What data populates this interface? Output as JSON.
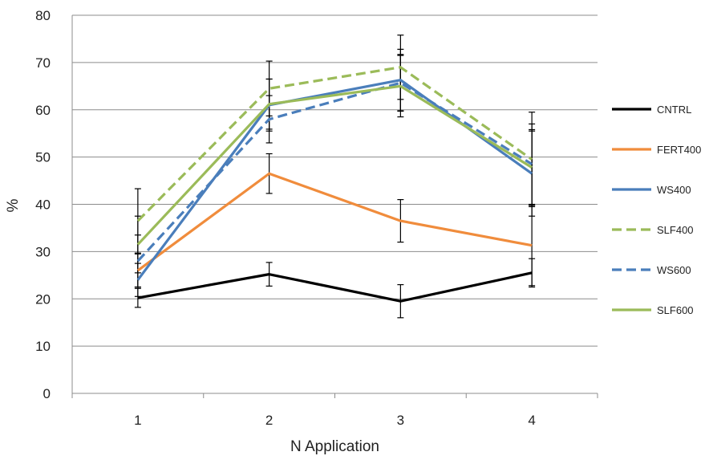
{
  "chart_data": {
    "type": "line",
    "title": "",
    "xlabel": "N Application",
    "ylabel": "%",
    "x": [
      "1",
      "2",
      "3",
      "4"
    ],
    "ylim": [
      0,
      80
    ],
    "yticks": [
      "0",
      "10",
      "20",
      "30",
      "40",
      "50",
      "60",
      "70",
      "80"
    ],
    "grid": "horizontal",
    "legend_position": "right",
    "series": [
      {
        "name": "CNTRL",
        "color": "#000000",
        "dash": false,
        "values": [
          20.2,
          25.2,
          19.5,
          25.5
        ],
        "errors": [
          2.0,
          2.5,
          3.5,
          3.0
        ]
      },
      {
        "name": "FERT400",
        "color": "#f08c3c",
        "dash": false,
        "values": [
          26.0,
          46.5,
          36.5,
          31.3
        ],
        "errors": [
          3.5,
          4.2,
          4.5,
          8.5
        ]
      },
      {
        "name": "WS400",
        "color": "#4a7ebb",
        "dash": false,
        "values": [
          24.0,
          61.0,
          66.3,
          46.5
        ],
        "errors": [
          3.5,
          5.5,
          6.5,
          9.0
        ]
      },
      {
        "name": "SLF400",
        "color": "#9bbb59",
        "dash": true,
        "values": [
          36.5,
          64.5,
          69.0,
          49.5
        ],
        "errors": [
          6.8,
          5.8,
          6.8,
          10.0
        ]
      },
      {
        "name": "WS600",
        "color": "#4a7ebb",
        "dash": true,
        "values": [
          28.0,
          58.0,
          65.7,
          48.5
        ],
        "errors": [
          5.5,
          5.0,
          6.0,
          8.5
        ]
      },
      {
        "name": "SLF600",
        "color": "#9bbb59",
        "dash": false,
        "values": [
          31.5,
          61.2,
          65.0,
          47.8
        ],
        "errors": [
          6.0,
          5.3,
          6.5,
          8.0
        ]
      }
    ]
  }
}
